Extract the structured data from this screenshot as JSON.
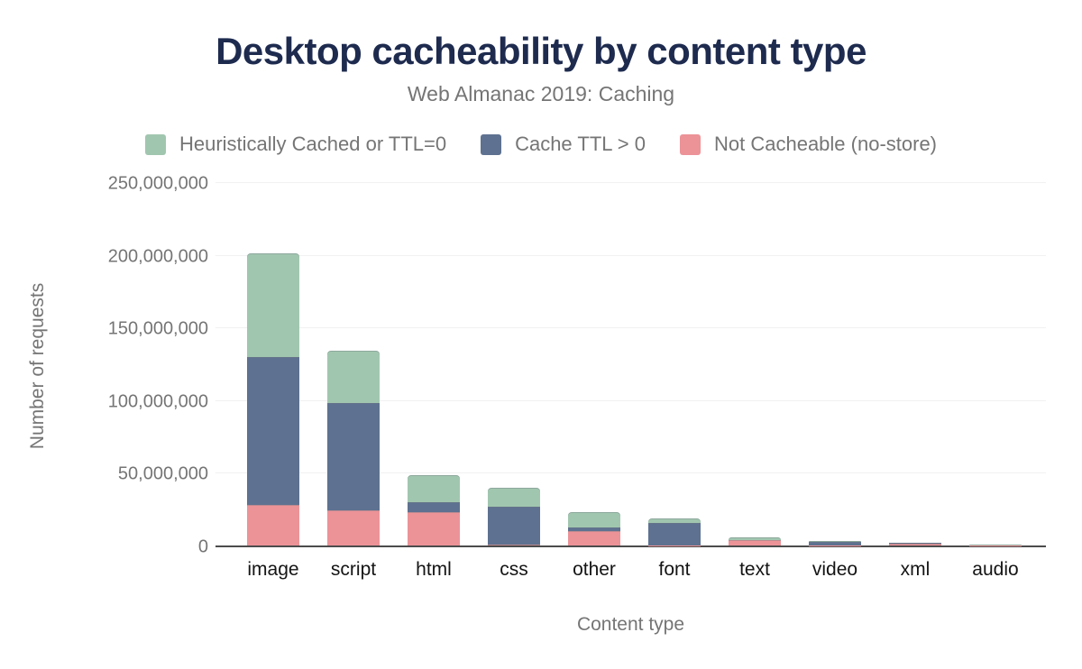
{
  "header": {
    "title": "Desktop cacheability by content type",
    "subtitle": "Web Almanac 2019: Caching"
  },
  "legend": {
    "items": [
      {
        "label": "Heuristically Cached or TTL=0",
        "color": "#a1c6af"
      },
      {
        "label": "Cache TTL > 0",
        "color": "#5e7190"
      },
      {
        "label": "Not Cacheable (no-store)",
        "color": "#ec9398"
      }
    ]
  },
  "axes": {
    "y_title": "Number of requests",
    "x_title": "Content type",
    "y_ticks": [
      "0",
      "50,000,000",
      "100,000,000",
      "150,000,000",
      "200,000,000",
      "250,000,000"
    ]
  },
  "colors": {
    "title": "#1e2b4f",
    "muted_text": "#757575",
    "x_label_text": "#141414",
    "gridline": "#f1f1f1",
    "axis_line": "#4c4c4c",
    "background": "#ffffff"
  },
  "chart_data": {
    "type": "bar",
    "stacked": true,
    "title": "Desktop cacheability by content type",
    "subtitle": "Web Almanac 2019: Caching",
    "xlabel": "Content type",
    "ylabel": "Number of requests",
    "ylim": [
      0,
      250000000
    ],
    "ytick_interval": 50000000,
    "grid": true,
    "legend_position": "top",
    "categories": [
      "image",
      "script",
      "html",
      "css",
      "other",
      "font",
      "text",
      "video",
      "xml",
      "audio"
    ],
    "series": [
      {
        "name": "Not Cacheable (no-store)",
        "color": "#ec9398",
        "values": [
          28000000,
          24500000,
          23000000,
          400000,
          10000000,
          300000,
          3500000,
          200000,
          1500000,
          150000
        ]
      },
      {
        "name": "Cache TTL > 0",
        "color": "#5e7190",
        "values": [
          101500000,
          73500000,
          7000000,
          26000000,
          2500000,
          15500000,
          500000,
          2300000,
          100000,
          100000
        ]
      },
      {
        "name": "Heuristically Cached or TTL=0",
        "color": "#a1c6af",
        "values": [
          71500000,
          36000000,
          18500000,
          13500000,
          10500000,
          2700000,
          1800000,
          800000,
          300000,
          150000
        ]
      }
    ],
    "totals": [
      201000000,
      134000000,
      48500000,
      39900000,
      23000000,
      18500000,
      5800000,
      3300000,
      1900000,
      400000
    ]
  }
}
